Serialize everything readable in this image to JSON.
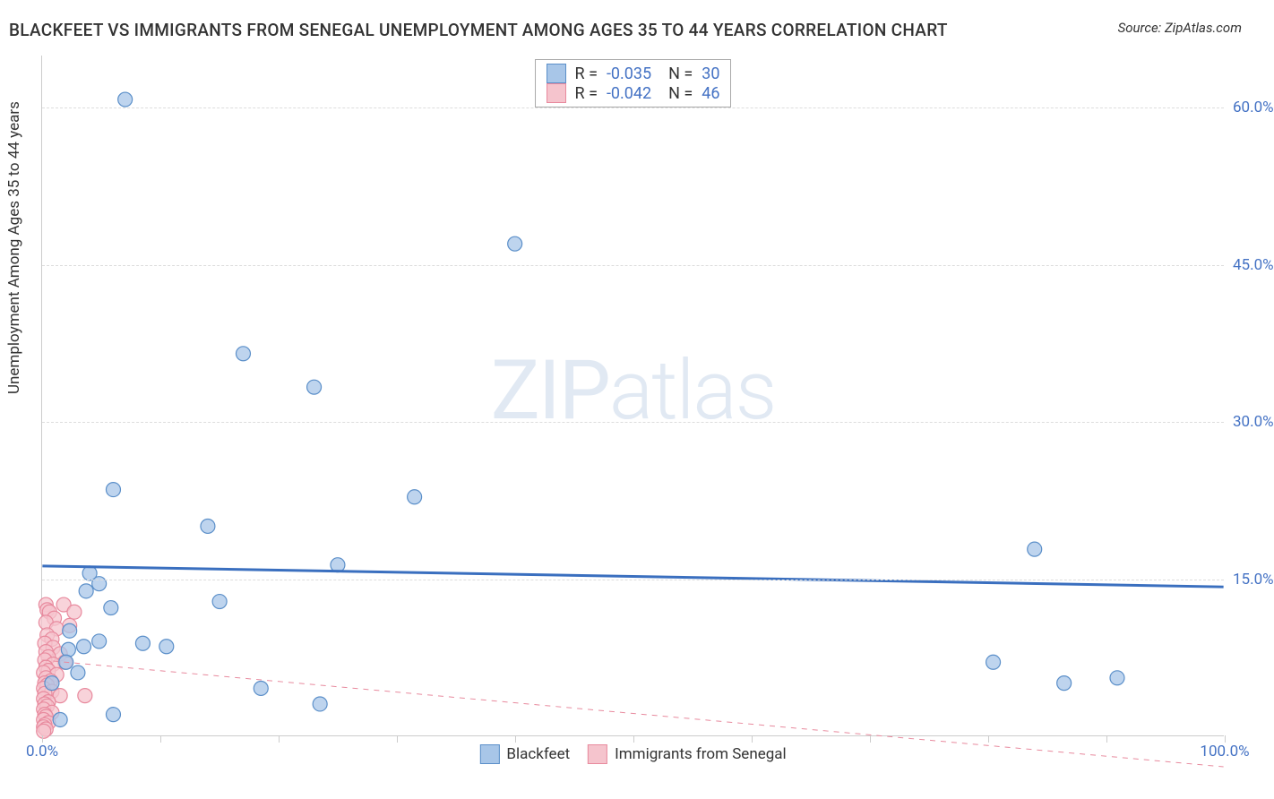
{
  "title": "BLACKFEET VS IMMIGRANTS FROM SENEGAL UNEMPLOYMENT AMONG AGES 35 TO 44 YEARS CORRELATION CHART",
  "source": "Source: ZipAtlas.com",
  "ylabel": "Unemployment Among Ages 35 to 44 years",
  "watermark": {
    "bold": "ZIP",
    "light": "atlas"
  },
  "chart": {
    "type": "scatter",
    "xlim": [
      0,
      100
    ],
    "ylim": [
      0,
      65
    ],
    "xticks": [
      0,
      10,
      20,
      30,
      40,
      50,
      60,
      70,
      80,
      90,
      100
    ],
    "yticks": [
      15,
      30,
      45,
      60
    ],
    "xtick_labels": {
      "0": "0.0%",
      "100": "100.0%"
    },
    "ytick_labels": [
      "15.0%",
      "30.0%",
      "45.0%",
      "60.0%"
    ],
    "background_color": "#ffffff",
    "grid_color": "#dddddd",
    "axis_color": "#cccccc",
    "tick_label_color": "#4472c4"
  },
  "series": [
    {
      "name": "Blackfeet",
      "marker_color": "#a8c6e8",
      "marker_stroke": "#5b8fc9",
      "marker_radius": 8,
      "line_color": "#3a6fbf",
      "line_width": 3,
      "line_dash": "none",
      "R": "-0.035",
      "N": "30",
      "regression": {
        "y_at_x0": 16.2,
        "y_at_x100": 14.2
      },
      "points": [
        [
          7.0,
          60.8
        ],
        [
          40.0,
          47.0
        ],
        [
          17.0,
          36.5
        ],
        [
          23.0,
          33.3
        ],
        [
          6.0,
          23.5
        ],
        [
          31.5,
          22.8
        ],
        [
          14.0,
          20.0
        ],
        [
          84.0,
          17.8
        ],
        [
          25.0,
          16.3
        ],
        [
          4.0,
          15.5
        ],
        [
          4.8,
          14.5
        ],
        [
          3.7,
          13.8
        ],
        [
          15.0,
          12.8
        ],
        [
          5.8,
          12.2
        ],
        [
          2.3,
          10.0
        ],
        [
          4.8,
          9.0
        ],
        [
          8.5,
          8.8
        ],
        [
          10.5,
          8.5
        ],
        [
          3.5,
          8.5
        ],
        [
          2.2,
          8.2
        ],
        [
          2.0,
          7.0
        ],
        [
          80.5,
          7.0
        ],
        [
          91.0,
          5.5
        ],
        [
          86.5,
          5.0
        ],
        [
          18.5,
          4.5
        ],
        [
          23.5,
          3.0
        ],
        [
          6.0,
          2.0
        ],
        [
          1.5,
          1.5
        ],
        [
          0.8,
          5.0
        ],
        [
          3.0,
          6.0
        ]
      ]
    },
    {
      "name": "Immigrants from Senegal",
      "marker_color": "#f5c4cd",
      "marker_stroke": "#e88a9e",
      "marker_radius": 8,
      "line_color": "#e88a9e",
      "line_width": 1,
      "line_dash": "6,6",
      "R": "-0.042",
      "N": "46",
      "regression": {
        "y_at_x0": 7.2,
        "y_at_x100": -3.0
      },
      "points": [
        [
          0.3,
          12.5
        ],
        [
          0.4,
          12.0
        ],
        [
          1.8,
          12.5
        ],
        [
          0.6,
          11.8
        ],
        [
          1.0,
          11.2
        ],
        [
          0.3,
          10.8
        ],
        [
          2.3,
          10.5
        ],
        [
          1.2,
          10.2
        ],
        [
          0.4,
          9.6
        ],
        [
          0.8,
          9.2
        ],
        [
          0.2,
          8.8
        ],
        [
          2.7,
          11.8
        ],
        [
          0.9,
          8.4
        ],
        [
          0.3,
          8.0
        ],
        [
          1.5,
          7.8
        ],
        [
          0.5,
          7.5
        ],
        [
          0.2,
          7.2
        ],
        [
          1.9,
          7.0
        ],
        [
          0.9,
          6.8
        ],
        [
          0.3,
          6.5
        ],
        [
          0.5,
          6.2
        ],
        [
          0.1,
          6.0
        ],
        [
          1.2,
          5.8
        ],
        [
          0.3,
          5.5
        ],
        [
          0.7,
          5.2
        ],
        [
          0.2,
          5.0
        ],
        [
          0.4,
          4.8
        ],
        [
          0.1,
          4.5
        ],
        [
          0.8,
          4.2
        ],
        [
          0.2,
          4.0
        ],
        [
          1.5,
          3.8
        ],
        [
          0.1,
          3.5
        ],
        [
          3.6,
          3.8
        ],
        [
          0.5,
          3.2
        ],
        [
          0.2,
          3.0
        ],
        [
          0.4,
          2.8
        ],
        [
          0.1,
          2.5
        ],
        [
          0.8,
          2.2
        ],
        [
          0.2,
          2.0
        ],
        [
          0.3,
          1.8
        ],
        [
          0.1,
          1.5
        ],
        [
          0.5,
          1.2
        ],
        [
          0.2,
          1.0
        ],
        [
          0.1,
          0.8
        ],
        [
          0.3,
          0.6
        ],
        [
          0.1,
          0.4
        ]
      ]
    }
  ],
  "legend_bottom": [
    {
      "label": "Blackfeet",
      "fill": "#a8c6e8",
      "stroke": "#5b8fc9"
    },
    {
      "label": "Immigrants from Senegal",
      "fill": "#f5c4cd",
      "stroke": "#e88a9e"
    }
  ]
}
